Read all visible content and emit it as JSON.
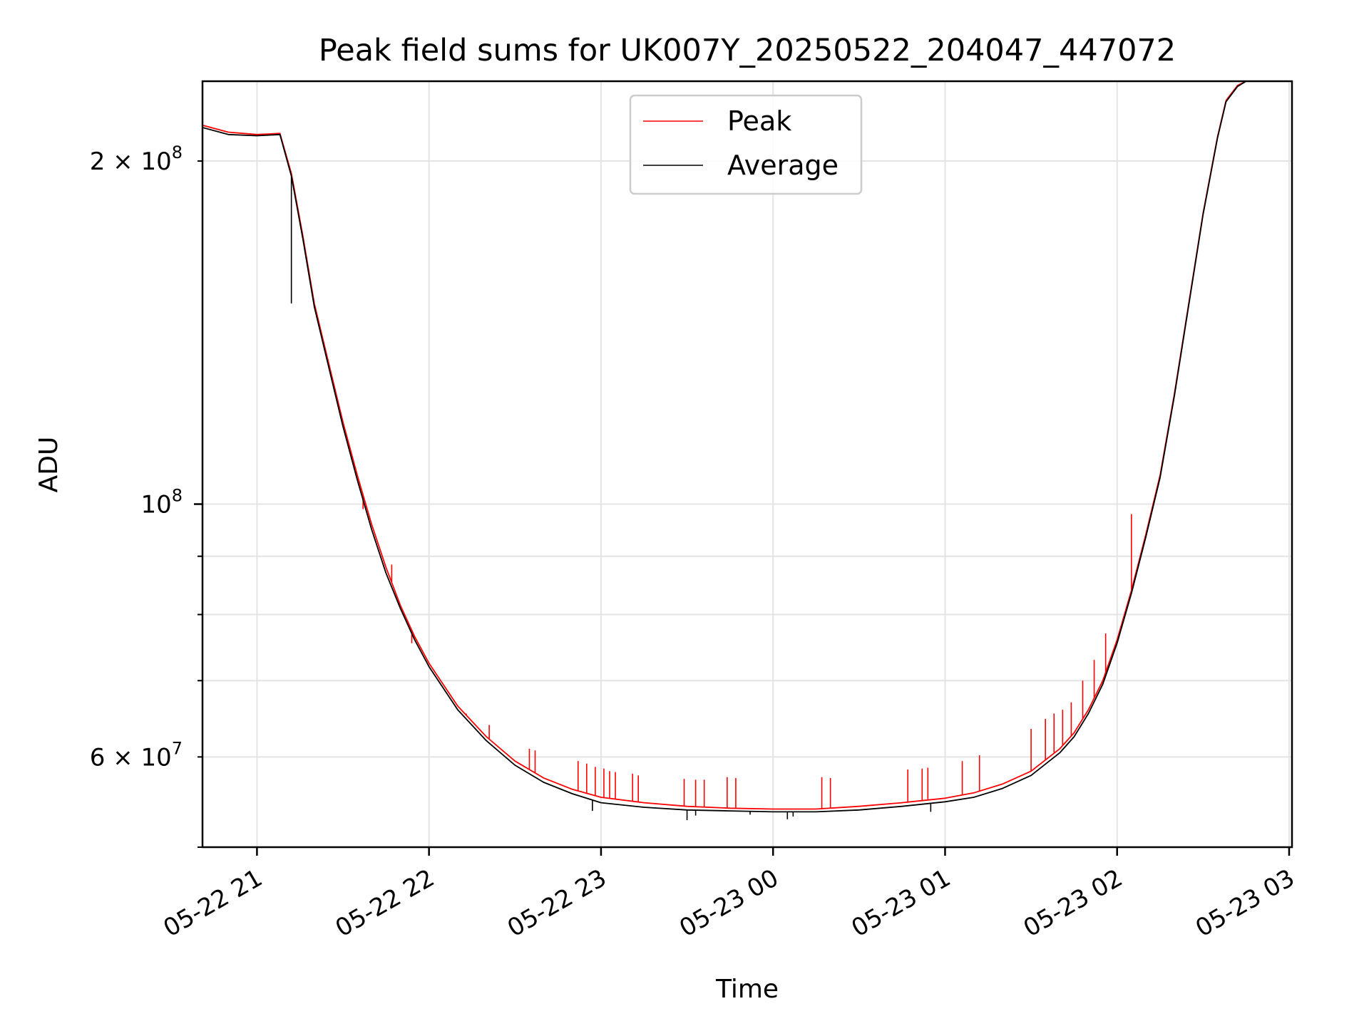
{
  "chart_data": {
    "type": "line",
    "title": "Peak field sums for UK007Y_20250522_204047_447072",
    "xlabel": "Time",
    "ylabel": "ADU",
    "yscale": "log",
    "xlim": [
      "2025-05-22 20:41",
      "2025-05-23 03:01"
    ],
    "ylim": [
      50000000,
      235000000
    ],
    "grid": true,
    "legend": "top-center",
    "x_ticks": [
      {
        "t": "2025-05-22 21:00",
        "label": "05-22 21"
      },
      {
        "t": "2025-05-22 22:00",
        "label": "05-22 22"
      },
      {
        "t": "2025-05-22 23:00",
        "label": "05-22 23"
      },
      {
        "t": "2025-05-23 00:00",
        "label": "05-23 00"
      },
      {
        "t": "2025-05-23 01:00",
        "label": "05-23 01"
      },
      {
        "t": "2025-05-23 02:00",
        "label": "05-23 02"
      },
      {
        "t": "2025-05-23 03:00",
        "label": "05-23 03"
      }
    ],
    "y_ticks_major": [
      {
        "v": 100000000,
        "base": "10",
        "exp": "8"
      }
    ],
    "y_ticks_minor_labeled": [
      {
        "v": 200000000,
        "mant": "2",
        "base": "10",
        "exp": "8"
      },
      {
        "v": 60000000,
        "mant": "6",
        "base": "10",
        "exp": "7"
      }
    ],
    "y_ticks_minor": [
      50000000,
      70000000,
      80000000,
      90000000
    ],
    "series": [
      {
        "name": "Peak",
        "color": "#ff0000",
        "x": [
          "2025-05-22 20:41",
          "2025-05-22 20:50",
          "2025-05-22 21:00",
          "2025-05-22 21:08",
          "2025-05-22 21:12",
          "2025-05-22 21:16",
          "2025-05-22 21:20",
          "2025-05-22 21:25",
          "2025-05-22 21:30",
          "2025-05-22 21:35",
          "2025-05-22 21:40",
          "2025-05-22 21:45",
          "2025-05-22 21:50",
          "2025-05-22 21:55",
          "2025-05-22 22:00",
          "2025-05-22 22:10",
          "2025-05-22 22:20",
          "2025-05-22 22:30",
          "2025-05-22 22:40",
          "2025-05-22 22:50",
          "2025-05-22 23:00",
          "2025-05-22 23:15",
          "2025-05-22 23:30",
          "2025-05-22 23:45",
          "2025-05-23 00:00",
          "2025-05-23 00:15",
          "2025-05-23 00:30",
          "2025-05-23 00:45",
          "2025-05-23 01:00",
          "2025-05-23 01:10",
          "2025-05-23 01:20",
          "2025-05-23 01:30",
          "2025-05-23 01:40",
          "2025-05-23 01:45",
          "2025-05-23 01:50",
          "2025-05-23 01:55",
          "2025-05-23 02:00",
          "2025-05-23 02:05",
          "2025-05-23 02:10",
          "2025-05-23 02:15",
          "2025-05-23 02:20",
          "2025-05-23 02:25",
          "2025-05-23 02:30",
          "2025-05-23 02:35",
          "2025-05-23 02:38",
          "2025-05-23 02:42",
          "2025-05-23 02:45"
        ],
        "values": [
          215000000,
          212000000,
          211000000,
          211500000,
          195000000,
          172000000,
          150000000,
          133000000,
          118000000,
          106000000,
          96000000,
          88000000,
          81500000,
          76500000,
          72500000,
          66500000,
          62500000,
          59500000,
          57500000,
          56200000,
          55300000,
          54700000,
          54300000,
          54100000,
          54000000,
          54000000,
          54300000,
          54700000,
          55200000,
          55800000,
          56800000,
          58300000,
          61000000,
          63000000,
          66000000,
          70000000,
          76000000,
          84000000,
          94000000,
          106000000,
          125000000,
          150000000,
          180000000,
          210000000,
          226000000,
          233000000,
          235000000
        ]
      },
      {
        "name": "Average",
        "color": "#000000",
        "x": [
          "2025-05-22 20:41",
          "2025-05-22 20:50",
          "2025-05-22 21:00",
          "2025-05-22 21:08",
          "2025-05-22 21:12",
          "2025-05-22 21:16",
          "2025-05-22 21:20",
          "2025-05-22 21:25",
          "2025-05-22 21:30",
          "2025-05-22 21:35",
          "2025-05-22 21:40",
          "2025-05-22 21:45",
          "2025-05-22 21:50",
          "2025-05-22 21:55",
          "2025-05-22 22:00",
          "2025-05-22 22:10",
          "2025-05-22 22:20",
          "2025-05-22 22:30",
          "2025-05-22 22:40",
          "2025-05-22 22:50",
          "2025-05-22 23:00",
          "2025-05-22 23:15",
          "2025-05-22 23:30",
          "2025-05-22 23:45",
          "2025-05-23 00:00",
          "2025-05-23 00:15",
          "2025-05-23 00:30",
          "2025-05-23 00:45",
          "2025-05-23 01:00",
          "2025-05-23 01:10",
          "2025-05-23 01:20",
          "2025-05-23 01:30",
          "2025-05-23 01:40",
          "2025-05-23 01:45",
          "2025-05-23 01:50",
          "2025-05-23 01:55",
          "2025-05-23 02:00",
          "2025-05-23 02:05",
          "2025-05-23 02:10",
          "2025-05-23 02:15",
          "2025-05-23 02:20",
          "2025-05-23 02:25",
          "2025-05-23 02:30",
          "2025-05-23 02:35",
          "2025-05-23 02:38",
          "2025-05-23 02:42",
          "2025-05-23 02:45"
        ],
        "values": [
          214000000,
          211000000,
          210500000,
          211000000,
          194000000,
          171000000,
          149000000,
          132000000,
          117000000,
          105000000,
          95000000,
          87000000,
          81000000,
          76000000,
          72000000,
          66000000,
          62000000,
          59000000,
          57000000,
          55700000,
          54700000,
          54200000,
          53900000,
          53800000,
          53700000,
          53700000,
          53900000,
          54300000,
          54800000,
          55300000,
          56300000,
          57800000,
          60500000,
          62500000,
          65500000,
          69500000,
          75500000,
          83500000,
          93500000,
          105500000,
          124500000,
          149500000,
          179500000,
          209500000,
          225500000,
          232500000,
          235000000
        ]
      }
    ],
    "spikes": {
      "Peak": [
        {
          "t": "2025-05-22 21:37",
          "v": 99000000
        },
        {
          "t": "2025-05-22 21:47",
          "v": 88500000
        },
        {
          "t": "2025-05-22 21:54",
          "v": 75500000
        },
        {
          "t": "2025-05-22 22:13",
          "v": 65500000
        },
        {
          "t": "2025-05-22 22:21",
          "v": 64000000
        },
        {
          "t": "2025-05-22 22:35",
          "v": 61000000
        },
        {
          "t": "2025-05-22 22:37",
          "v": 60800000
        },
        {
          "t": "2025-05-22 22:52",
          "v": 59500000
        },
        {
          "t": "2025-05-22 22:55",
          "v": 59200000
        },
        {
          "t": "2025-05-22 22:58",
          "v": 58800000
        },
        {
          "t": "2025-05-22 23:01",
          "v": 58600000
        },
        {
          "t": "2025-05-22 23:03",
          "v": 58300000
        },
        {
          "t": "2025-05-22 23:05",
          "v": 58200000
        },
        {
          "t": "2025-05-22 23:11",
          "v": 58000000
        },
        {
          "t": "2025-05-22 23:13",
          "v": 57800000
        },
        {
          "t": "2025-05-22 23:29",
          "v": 57400000
        },
        {
          "t": "2025-05-22 23:33",
          "v": 57300000
        },
        {
          "t": "2025-05-22 23:36",
          "v": 57300000
        },
        {
          "t": "2025-05-22 23:44",
          "v": 57600000
        },
        {
          "t": "2025-05-22 23:47",
          "v": 57500000
        },
        {
          "t": "2025-05-23 00:17",
          "v": 57600000
        },
        {
          "t": "2025-05-23 00:20",
          "v": 57500000
        },
        {
          "t": "2025-05-23 00:47",
          "v": 58500000
        },
        {
          "t": "2025-05-23 00:52",
          "v": 58600000
        },
        {
          "t": "2025-05-23 00:54",
          "v": 58700000
        },
        {
          "t": "2025-05-23 01:06",
          "v": 59500000
        },
        {
          "t": "2025-05-23 01:12",
          "v": 60200000
        },
        {
          "t": "2025-05-23 01:30",
          "v": 63500000
        },
        {
          "t": "2025-05-23 01:35",
          "v": 64800000
        },
        {
          "t": "2025-05-23 01:38",
          "v": 65500000
        },
        {
          "t": "2025-05-23 01:41",
          "v": 66000000
        },
        {
          "t": "2025-05-23 01:44",
          "v": 67000000
        },
        {
          "t": "2025-05-23 01:48",
          "v": 70000000
        },
        {
          "t": "2025-05-23 01:52",
          "v": 73000000
        },
        {
          "t": "2025-05-23 01:56",
          "v": 77000000
        },
        {
          "t": "2025-05-23 02:05",
          "v": 98000000
        }
      ],
      "Average": [
        {
          "t": "2025-05-22 21:12",
          "v": 150000000
        },
        {
          "t": "2025-05-22 22:57",
          "v": 53800000
        },
        {
          "t": "2025-05-22 23:30",
          "v": 52800000
        },
        {
          "t": "2025-05-22 23:33",
          "v": 53300000
        },
        {
          "t": "2025-05-22 23:52",
          "v": 53400000
        },
        {
          "t": "2025-05-23 00:05",
          "v": 52900000
        },
        {
          "t": "2025-05-23 00:07",
          "v": 53200000
        },
        {
          "t": "2025-05-23 00:55",
          "v": 53700000
        }
      ]
    }
  }
}
